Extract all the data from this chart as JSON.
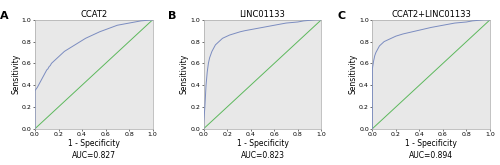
{
  "panels": [
    {
      "label": "A",
      "title": "CCAT2",
      "auc_text": "AUC=0.827",
      "roc_curve": [
        [
          0.0,
          0.0
        ],
        [
          0.0,
          0.35
        ],
        [
          0.02,
          0.38
        ],
        [
          0.03,
          0.4
        ],
        [
          0.04,
          0.42
        ],
        [
          0.05,
          0.44
        ],
        [
          0.06,
          0.46
        ],
        [
          0.07,
          0.48
        ],
        [
          0.08,
          0.5
        ],
        [
          0.09,
          0.52
        ],
        [
          0.1,
          0.54
        ],
        [
          0.11,
          0.55
        ],
        [
          0.12,
          0.57
        ],
        [
          0.13,
          0.58
        ],
        [
          0.14,
          0.6
        ],
        [
          0.15,
          0.61
        ],
        [
          0.17,
          0.63
        ],
        [
          0.19,
          0.65
        ],
        [
          0.21,
          0.67
        ],
        [
          0.23,
          0.69
        ],
        [
          0.25,
          0.71
        ],
        [
          0.28,
          0.73
        ],
        [
          0.31,
          0.75
        ],
        [
          0.34,
          0.77
        ],
        [
          0.37,
          0.79
        ],
        [
          0.4,
          0.81
        ],
        [
          0.43,
          0.83
        ],
        [
          0.47,
          0.85
        ],
        [
          0.51,
          0.87
        ],
        [
          0.55,
          0.89
        ],
        [
          0.6,
          0.91
        ],
        [
          0.65,
          0.93
        ],
        [
          0.7,
          0.95
        ],
        [
          0.75,
          0.96
        ],
        [
          0.8,
          0.97
        ],
        [
          0.85,
          0.98
        ],
        [
          0.9,
          0.99
        ],
        [
          0.95,
          0.995
        ],
        [
          1.0,
          1.0
        ]
      ]
    },
    {
      "label": "B",
      "title": "LINC01133",
      "auc_text": "AUC=0.823",
      "roc_curve": [
        [
          0.0,
          0.0
        ],
        [
          0.0,
          0.05
        ],
        [
          0.01,
          0.2
        ],
        [
          0.02,
          0.4
        ],
        [
          0.03,
          0.52
        ],
        [
          0.04,
          0.6
        ],
        [
          0.05,
          0.65
        ],
        [
          0.06,
          0.68
        ],
        [
          0.07,
          0.71
        ],
        [
          0.08,
          0.73
        ],
        [
          0.09,
          0.75
        ],
        [
          0.1,
          0.77
        ],
        [
          0.12,
          0.79
        ],
        [
          0.14,
          0.81
        ],
        [
          0.16,
          0.83
        ],
        [
          0.18,
          0.84
        ],
        [
          0.2,
          0.85
        ],
        [
          0.22,
          0.86
        ],
        [
          0.25,
          0.87
        ],
        [
          0.28,
          0.88
        ],
        [
          0.31,
          0.89
        ],
        [
          0.35,
          0.9
        ],
        [
          0.4,
          0.91
        ],
        [
          0.45,
          0.92
        ],
        [
          0.5,
          0.93
        ],
        [
          0.55,
          0.94
        ],
        [
          0.6,
          0.95
        ],
        [
          0.65,
          0.96
        ],
        [
          0.7,
          0.97
        ],
        [
          0.75,
          0.975
        ],
        [
          0.8,
          0.98
        ],
        [
          0.85,
          0.99
        ],
        [
          0.9,
          0.995
        ],
        [
          0.95,
          1.0
        ],
        [
          1.0,
          1.0
        ]
      ]
    },
    {
      "label": "C",
      "title": "CCAT2+LINC01133",
      "auc_text": "AUC=0.894",
      "roc_curve": [
        [
          0.0,
          0.0
        ],
        [
          0.0,
          0.55
        ],
        [
          0.01,
          0.62
        ],
        [
          0.02,
          0.67
        ],
        [
          0.03,
          0.7
        ],
        [
          0.04,
          0.72
        ],
        [
          0.05,
          0.74
        ],
        [
          0.06,
          0.76
        ],
        [
          0.07,
          0.77
        ],
        [
          0.08,
          0.78
        ],
        [
          0.09,
          0.79
        ],
        [
          0.1,
          0.8
        ],
        [
          0.12,
          0.81
        ],
        [
          0.14,
          0.82
        ],
        [
          0.16,
          0.83
        ],
        [
          0.18,
          0.84
        ],
        [
          0.2,
          0.85
        ],
        [
          0.23,
          0.86
        ],
        [
          0.26,
          0.87
        ],
        [
          0.3,
          0.88
        ],
        [
          0.34,
          0.89
        ],
        [
          0.38,
          0.9
        ],
        [
          0.42,
          0.91
        ],
        [
          0.46,
          0.92
        ],
        [
          0.5,
          0.93
        ],
        [
          0.55,
          0.94
        ],
        [
          0.6,
          0.95
        ],
        [
          0.65,
          0.96
        ],
        [
          0.7,
          0.97
        ],
        [
          0.75,
          0.975
        ],
        [
          0.8,
          0.98
        ],
        [
          0.85,
          0.99
        ],
        [
          0.9,
          0.995
        ],
        [
          0.95,
          1.0
        ],
        [
          1.0,
          1.0
        ]
      ]
    }
  ],
  "roc_color": "#7b8cc0",
  "diagonal_color": "#5cb85c",
  "fig_bg_color": "#ffffff",
  "plot_bg_color": "#e8e8e8",
  "border_color": "#aaaaaa",
  "tick_fontsize": 4.5,
  "label_fontsize": 5.5,
  "title_fontsize": 6,
  "panel_label_fontsize": 8,
  "xlabel": "1 - Specificity",
  "ylabel": "Sensitivity",
  "xticks": [
    0.0,
    0.2,
    0.4,
    0.6,
    0.8,
    1.0
  ],
  "yticks": [
    0.0,
    0.2,
    0.4,
    0.6,
    0.8,
    1.0
  ],
  "xtick_labels": [
    "0.0",
    "0.2",
    "0.4",
    "0.6",
    "0.8",
    "1.0"
  ],
  "ytick_labels": [
    "0.0",
    "0.2",
    "0.4",
    "0.6",
    "0.8",
    "1.0"
  ]
}
